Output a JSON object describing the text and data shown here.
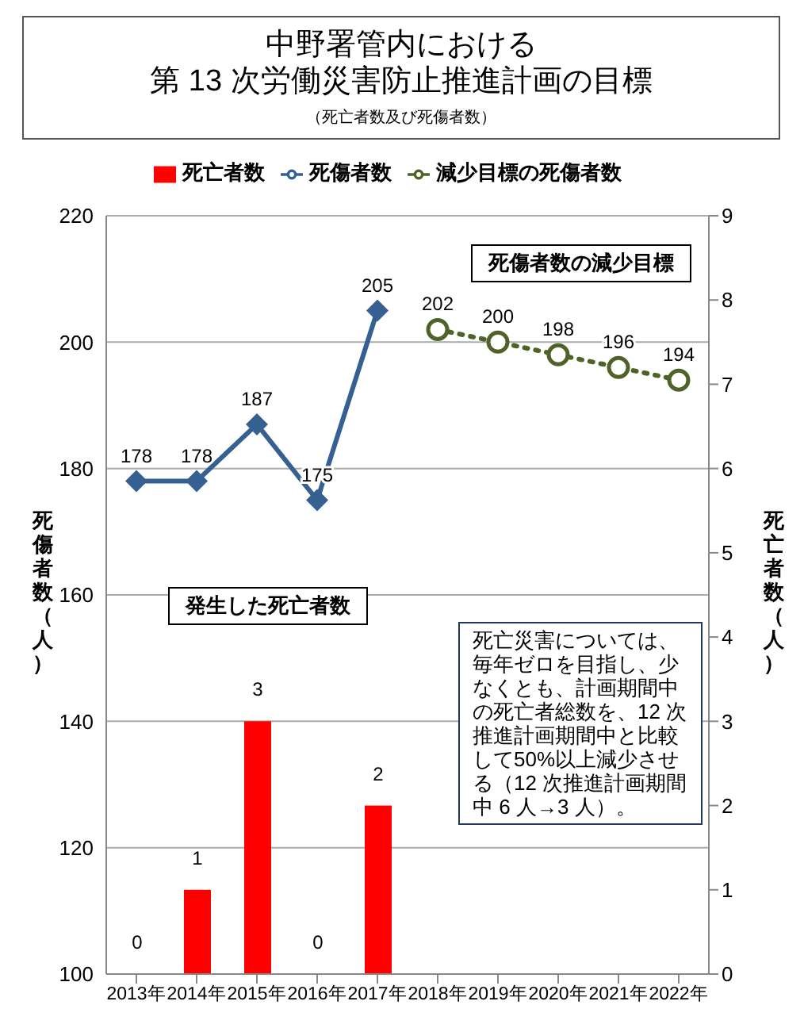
{
  "chart_data": {
    "type": "bar",
    "title": "中野署管内における第 13 次労働災害防止推進計画の目標",
    "subtitle": "（死亡者数及び死傷者数）",
    "categories": [
      "2013年",
      "2014年",
      "2015年",
      "2016年",
      "2017年",
      "2018年",
      "2019年",
      "2020年",
      "2021年",
      "2022年"
    ],
    "series": [
      {
        "name": "死亡者数",
        "axis": "y2",
        "color": "#ff0000",
        "values": [
          0,
          1,
          3,
          0,
          2,
          null,
          null,
          null,
          null,
          null
        ]
      },
      {
        "name": "死傷者数",
        "type": "line",
        "color": "#376092",
        "marker": "diamond",
        "line_style": "solid",
        "values": [
          178,
          178,
          187,
          175,
          205,
          null,
          null,
          null,
          null,
          null
        ]
      },
      {
        "name": "減少目標の死傷者数",
        "type": "line",
        "color": "#4f6228",
        "marker": "circle",
        "line_style": "dotted",
        "values": [
          null,
          null,
          null,
          null,
          null,
          202,
          200,
          198,
          196,
          194
        ]
      }
    ],
    "ylim": [
      100,
      220
    ],
    "yticks": [
      100,
      120,
      140,
      160,
      180,
      200,
      220
    ],
    "y2lim": [
      0,
      9
    ],
    "y2ticks": [
      0,
      1,
      2,
      3,
      4,
      5,
      6,
      7,
      8,
      9
    ],
    "ylabel": "死傷者数（人）",
    "y2label": "死亡者数（人）",
    "data_labels": true,
    "grid": "y",
    "legend": "top",
    "annotations": [
      "死傷者数の減少目標",
      "発生した死亡者数",
      "死亡災害については、毎年ゼロを目指し、少なくとも、計画期間中の死亡者総数を、12 次推進計画期間中と比較して50%以上減少させる（12 次推進計画期間中 6 人→3 人）。"
    ]
  }
}
